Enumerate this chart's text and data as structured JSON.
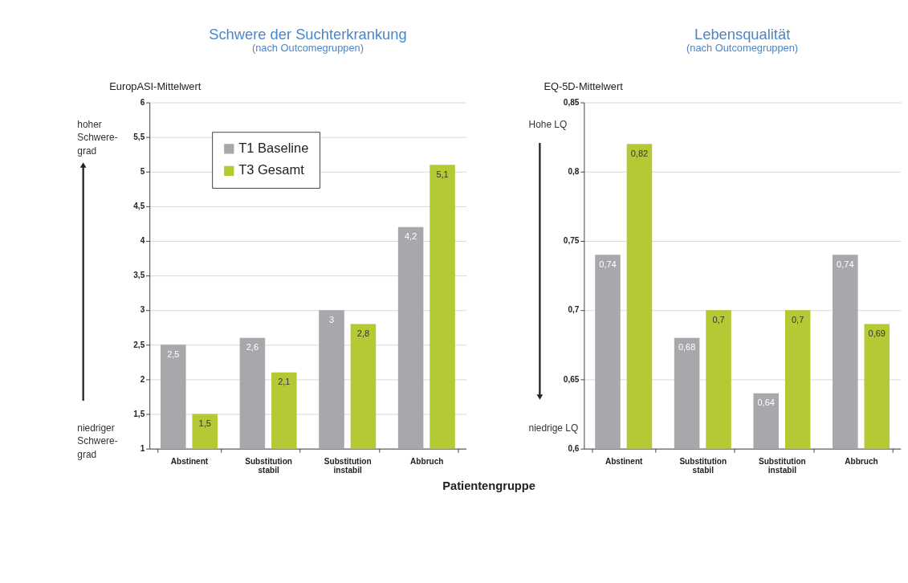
{
  "chart_data": [
    {
      "type": "bar",
      "title": "Schwere der Suchterkrankung",
      "subtitle": "(nach Outcomegruppen)",
      "ylabel": "EuropASI-Mittelwert",
      "xlabel": "Patientengruppe",
      "categories": [
        "Abstinent",
        "Substitution stabil",
        "Substitution instabil",
        "Abbruch"
      ],
      "series": [
        {
          "name": "T1 Baseline",
          "color": "#a7a7ac",
          "values": [
            2.5,
            2.6,
            3,
            4.2
          ],
          "value_labels": [
            "2,5",
            "2,6",
            "3",
            "4,2"
          ]
        },
        {
          "name": "T3 Gesamt",
          "color": "#b5c935",
          "values": [
            1.5,
            2.1,
            2.8,
            5.1
          ],
          "value_labels": [
            "1,5",
            "2,1",
            "2,8",
            "5,1"
          ]
        }
      ],
      "ylim": [
        1,
        6
      ],
      "yticks": [
        1,
        {
          "value": 1.5,
          "label": "1,5"
        },
        2,
        {
          "value": 2.5,
          "label": "2,5"
        },
        3,
        {
          "value": 3.5,
          "label": "3,5"
        },
        4,
        {
          "value": 4.5,
          "label": "4,5"
        },
        5,
        {
          "value": 5.5,
          "label": "5,5"
        },
        6
      ],
      "grid": "y",
      "legend": "top",
      "annotations": [
        "hoher\nSchwere-\ngrad",
        "niedriger\nSchwere-\ngrad"
      ]
    },
    {
      "type": "bar",
      "title": "Lebensqualität",
      "subtitle": "(nach Outcomegruppen)",
      "ylabel": "EQ-5D-Mittelwert",
      "categories": [
        "Abstinent",
        "Substitution stabil",
        "Substitution instabil",
        "Abbruch"
      ],
      "series": [
        {
          "name": "T1 Baseline",
          "color": "#a7a7ac",
          "values": [
            0.74,
            0.68,
            0.64,
            0.74
          ],
          "value_labels": [
            "0,74",
            "0,68",
            "0,64",
            "0,74"
          ]
        },
        {
          "name": "T3 Gesamt",
          "color": "#b5c935",
          "values": [
            0.82,
            0.7,
            0.7,
            0.69
          ],
          "value_labels": [
            "0,82",
            "0,7",
            "0,7",
            "0,69"
          ]
        }
      ],
      "ylim": [
        0.6,
        0.85
      ],
      "yticks": [
        {
          "value": 0.6,
          "label": "0,6"
        },
        {
          "value": 0.65,
          "label": "0,65"
        },
        {
          "value": 0.7,
          "label": "0,7"
        },
        {
          "value": 0.75,
          "label": "0,75"
        },
        {
          "value": 0.8,
          "label": "0,8"
        },
        {
          "value": 0.85,
          "label": "0,85"
        }
      ],
      "grid": "y",
      "legend": "top right",
      "annotations": [
        "Hohe LQ",
        "niedrige LQ"
      ]
    }
  ]
}
